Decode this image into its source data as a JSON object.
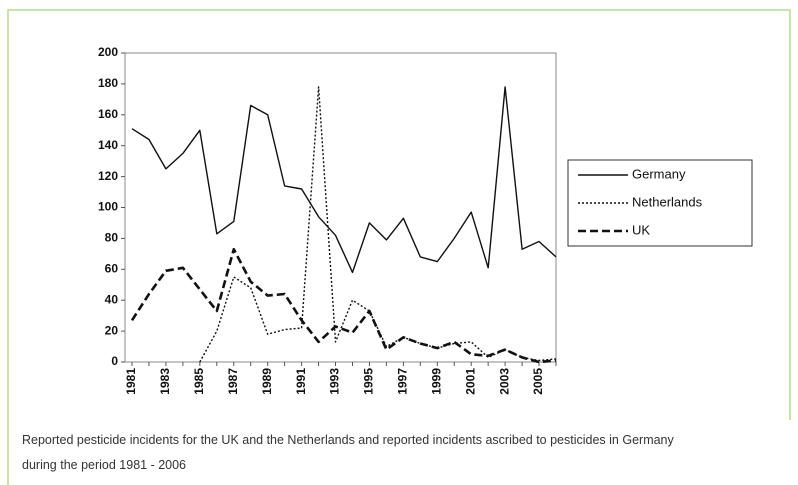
{
  "chart_data": {
    "type": "line",
    "categories": [
      "1981",
      null,
      "1983",
      null,
      "1985",
      null,
      "1987",
      null,
      "1989",
      null,
      "1991",
      null,
      "1993",
      null,
      "1995",
      null,
      "1997",
      null,
      "1999",
      null,
      "2001",
      null,
      "2003",
      null,
      "2005",
      null
    ],
    "series": [
      {
        "name": "Germany",
        "color": "#111111",
        "line_style": "solid",
        "values": [
          151,
          144,
          125,
          135,
          150,
          83,
          91,
          166,
          160,
          114,
          112,
          94,
          82,
          58,
          90,
          79,
          93,
          68,
          65,
          80,
          97,
          61,
          178,
          73,
          78,
          68
        ]
      },
      {
        "name": "Netherlands",
        "color": "#111111",
        "line_style": "dotted",
        "values": [
          null,
          null,
          null,
          null,
          0,
          20,
          55,
          48,
          18,
          21,
          22,
          178,
          13,
          40,
          33,
          10,
          16,
          12,
          9,
          12,
          13,
          3,
          8,
          3,
          1,
          2
        ]
      },
      {
        "name": "UK",
        "color": "#111111",
        "line_style": "dashed",
        "values": [
          27,
          44,
          59,
          61,
          47,
          33,
          73,
          52,
          43,
          44,
          27,
          13,
          23,
          19,
          33,
          8,
          16,
          12,
          9,
          13,
          5,
          4,
          8,
          3,
          0,
          1
        ]
      }
    ],
    "ylim": [
      0,
      200
    ],
    "yticks": [
      0,
      20,
      40,
      60,
      80,
      100,
      120,
      140,
      160,
      180,
      200
    ],
    "legend": "right",
    "caption": [
      "Reported pesticide incidents for the UK and the Netherlands and reported incidents ascribed to pesticides in Germany",
      "during the period 1981 - 2006"
    ]
  }
}
